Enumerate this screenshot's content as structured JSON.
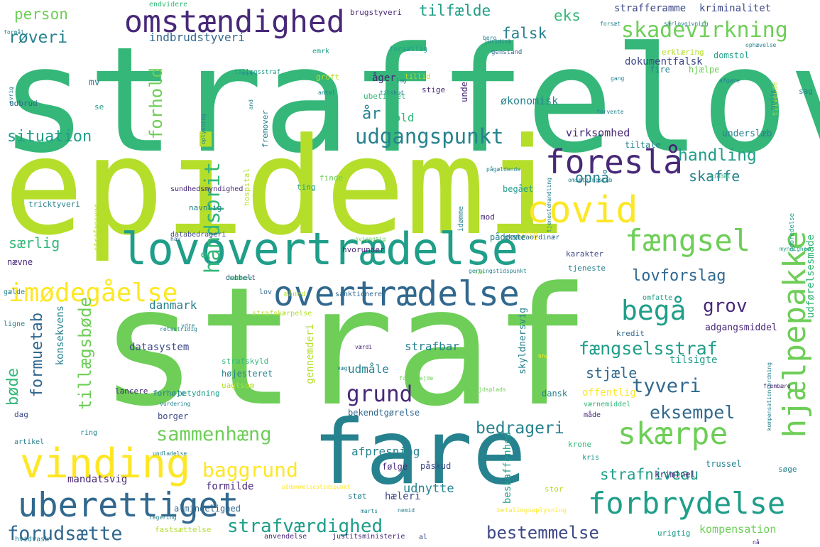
{
  "palette": {
    "dark_purple": "#482878",
    "indigo": "#3e4989",
    "blue": "#31688e",
    "teal": "#26828e",
    "teal_green": "#1f9e89",
    "green": "#35b779",
    "light_green": "#6ece58",
    "lime": "#b5de2b",
    "yellow": "#fde725"
  },
  "words": [
    {
      "text": "straffelov"
    },
    {
      "text": "epidemi"
    },
    {
      "text": "straf"
    },
    {
      "text": "fare"
    },
    {
      "text": "lovovertrædelse"
    },
    {
      "text": "overtrædelse"
    },
    {
      "text": "omstændighed"
    },
    {
      "text": "covid"
    },
    {
      "text": "foreslå"
    },
    {
      "text": "vinding"
    },
    {
      "text": "uberettiget"
    },
    {
      "text": "forbrydelse"
    },
    {
      "text": "hjælpepakke"
    },
    {
      "text": "fængsel"
    },
    {
      "text": "skærpe"
    },
    {
      "text": "begå"
    },
    {
      "text": "imødegåelse"
    },
    {
      "text": "skadevirkning"
    },
    {
      "text": "udgangspunkt"
    },
    {
      "text": "baggrund"
    },
    {
      "text": "strafværdighed"
    },
    {
      "text": "forudsætte"
    },
    {
      "text": "bestemmelse"
    },
    {
      "text": "grund"
    },
    {
      "text": "tyveri"
    },
    {
      "text": "sammenhæng"
    },
    {
      "text": "bedrageri"
    },
    {
      "text": "fængselsstraf"
    },
    {
      "text": "eksempel"
    },
    {
      "text": "strafniveau"
    },
    {
      "text": "situation"
    },
    {
      "text": "handling"
    },
    {
      "text": "lovforslag"
    },
    {
      "text": "grov"
    },
    {
      "text": "håndsprit"
    },
    {
      "text": "forhold"
    },
    {
      "text": "tillægsbøde"
    },
    {
      "text": "formuetab"
    },
    {
      "text": "bøde"
    },
    {
      "text": "røveri"
    },
    {
      "text": "person"
    },
    {
      "text": "tilfælde"
    },
    {
      "text": "falsk"
    },
    {
      "text": "eks"
    },
    {
      "text": "indbrudstyveri"
    },
    {
      "text": "år"
    },
    {
      "text": "opnå"
    },
    {
      "text": "skaffe"
    },
    {
      "text": "særlig"
    },
    {
      "text": "stjæle"
    },
    {
      "text": "danmark"
    },
    {
      "text": "udmåle"
    },
    {
      "text": "strafbar"
    },
    {
      "text": "afpresning"
    },
    {
      "text": "udnytte"
    },
    {
      "text": "formilde"
    },
    {
      "text": "mandatsvig"
    },
    {
      "text": "kompensation"
    },
    {
      "text": "vold"
    },
    {
      "text": "åger"
    },
    {
      "text": "økonomisk"
    },
    {
      "text": "virksomhed"
    },
    {
      "text": "tiltale"
    },
    {
      "text": "underslæb"
    },
    {
      "text": "dokumentfalsk"
    },
    {
      "text": "strafferamme"
    },
    {
      "text": "kriminalitet"
    },
    {
      "text": "brugstyveri"
    },
    {
      "text": "endvidere"
    },
    {
      "text": "forsætlig"
    },
    {
      "text": "emrk"
    },
    {
      "text": "groft"
    },
    {
      "text": "ubetinget"
    },
    {
      "text": "stige"
    },
    {
      "text": "mv"
    },
    {
      "text": "udbrud"
    },
    {
      "text": "se"
    },
    {
      "text": "tricktyveri"
    },
    {
      "text": "navnlig"
    },
    {
      "text": "hospital"
    },
    {
      "text": "ting"
    },
    {
      "text": "begået"
    },
    {
      "text": "svig"
    },
    {
      "text": "mod"
    },
    {
      "text": "hvorunder"
    },
    {
      "text": "karakter"
    },
    {
      "text": "ekstraordinær"
    },
    {
      "text": "tjeneste"
    },
    {
      "text": "lov"
    },
    {
      "text": "dobbelt"
    },
    {
      "text": "databedrageri"
    },
    {
      "text": "nævne"
    },
    {
      "text": "konsekvens"
    },
    {
      "text": "datasystem"
    },
    {
      "text": "højesteret"
    },
    {
      "text": "strafskyld"
    },
    {
      "text": "uagtsom"
    },
    {
      "text": "betydning"
    },
    {
      "text": "forhøje"
    },
    {
      "text": "borger"
    },
    {
      "text": "bekendtgørelse"
    },
    {
      "text": "lancere"
    },
    {
      "text": "dag"
    },
    {
      "text": "ring"
    },
    {
      "text": "artikel"
    },
    {
      "text": "følge"
    },
    {
      "text": "påskud"
    },
    {
      "text": "hæleri"
    },
    {
      "text": "støt"
    },
    {
      "text": "almindelighed"
    },
    {
      "text": "fastsættelse"
    },
    {
      "text": "anvendelse"
    },
    {
      "text": "justitsministerie"
    },
    {
      "text": "al"
    },
    {
      "text": "urigtig"
    },
    {
      "text": "trussel"
    },
    {
      "text": "kriminel"
    },
    {
      "text": "søge"
    },
    {
      "text": "krone"
    },
    {
      "text": "kris"
    },
    {
      "text": "stor"
    },
    {
      "text": "værnemiddel"
    },
    {
      "text": "måde"
    },
    {
      "text": "offentlig"
    },
    {
      "text": "dansk"
    },
    {
      "text": "tilsigte"
    },
    {
      "text": "adgangsmiddel"
    },
    {
      "text": "kredit"
    },
    {
      "text": "omfatte"
    },
    {
      "text": "udførelsesmåde"
    },
    {
      "text": "sanktionere"
    },
    {
      "text": "måned"
    },
    {
      "text": "strafskærpelse"
    },
    {
      "text": "gælde"
    },
    {
      "text": "ligne"
    },
    {
      "text": "skyldnersvig"
    },
    {
      "text": "beskaffenhed"
    },
    {
      "text": "deri"
    },
    {
      "text": "gennem"
    },
    {
      "text": "unde"
    },
    {
      "text": "hjælpe"
    },
    {
      "text": "fire"
    },
    {
      "text": "domstol"
    },
    {
      "text": "erklæring"
    },
    {
      "text": "sag"
    },
    {
      "text": "tillid"
    },
    {
      "text": "tilvende"
    },
    {
      "text": "genstand"
    },
    {
      "text": "idømme"
    },
    {
      "text": "finde"
    },
    {
      "text": "sundhedsmyndighed"
    },
    {
      "text": "fremover"
    },
    {
      "text": "tillægsstraf"
    },
    {
      "text": "pådømme"
    },
    {
      "text": "strafansvar"
    },
    {
      "text": "hvidvask"
    },
    {
      "text": "vis"
    },
    {
      "text": "formål"
    },
    {
      "text": "bero"
    },
    {
      "text": "forsæt"
    },
    {
      "text": "særlovgivning"
    },
    {
      "text": "juridisk"
    },
    {
      "text": "ophævelse"
    },
    {
      "text": "rørlig"
    },
    {
      "text": "middel"
    },
    {
      "text": "myndighed"
    },
    {
      "text": "udbredelse"
    },
    {
      "text": "kompensationsordning"
    },
    {
      "text": "frembære"
    },
    {
      "text": "hav"
    },
    {
      "text": "svigagtig"
    },
    {
      "text": "gerningstidspunkt"
    },
    {
      "text": "lån"
    },
    {
      "text": "medføre"
    },
    {
      "text": "arbejdsplads"
    },
    {
      "text": "forarbejde"
    },
    {
      "text": "vægt"
    },
    {
      "text": "værdi"
    },
    {
      "text": "hhv"
    },
    {
      "text": "retsstridig"
    },
    {
      "text": "vurdering"
    },
    {
      "text": "regering"
    },
    {
      "text": "undladelse"
    },
    {
      "text": "pådømmelsestidspunkt"
    },
    {
      "text": "nå"
    },
    {
      "text": "betalingsoplysning"
    },
    {
      "text": "marts"
    },
    {
      "text": "nemid"
    },
    {
      "text": "ydre"
    },
    {
      "text": "and"
    },
    {
      "text": "oplysning"
    },
    {
      "text": "antal"
    },
    {
      "text": "tilskud"
    },
    {
      "text": "lag"
    },
    {
      "text": "gang"
    },
    {
      "text": "afgøre"
    },
    {
      "text": "avrig"
    },
    {
      "text": "forvente"
    },
    {
      "text": "pågældende"
    },
    {
      "text": "tjenestehandling"
    },
    {
      "text": "omsætningstab"
    }
  ]
}
